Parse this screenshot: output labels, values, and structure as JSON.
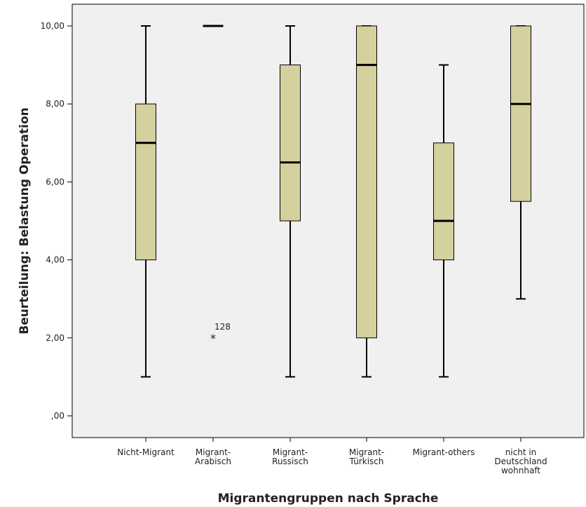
{
  "chart_data": {
    "type": "boxplot",
    "xlabel": "Migrantengruppen nach Sprache",
    "ylabel": "Beurteilung: Belastung Operation",
    "ylim": [
      0,
      10
    ],
    "yticks": [
      0,
      2,
      4,
      6,
      8,
      10
    ],
    "ytick_labels": [
      ",00",
      "2,00",
      "4,00",
      "6,00",
      "8,00",
      "10,00"
    ],
    "grid": false,
    "box_color": "#d5d19e",
    "plot_bg": "#f0f0f0",
    "categories": [
      {
        "label": [
          "Nicht-Migrant"
        ],
        "min": 1,
        "q1": 4,
        "median": 7,
        "q3": 8,
        "max": 10
      },
      {
        "label": [
          "Migrant-",
          "Arabisch"
        ],
        "min": 10,
        "q1": 10,
        "median": 10,
        "q3": 10,
        "max": 10
      },
      {
        "label": [
          "Migrant-",
          "Russisch"
        ],
        "min": 1,
        "q1": 5,
        "median": 6.5,
        "q3": 9,
        "max": 10
      },
      {
        "label": [
          "Migrant-",
          "Türkisch"
        ],
        "min": 1,
        "q1": 2,
        "median": 9,
        "q3": 10,
        "max": 10
      },
      {
        "label": [
          "Migrant-others"
        ],
        "min": 1,
        "q1": 4,
        "median": 5,
        "q3": 7,
        "max": 9
      },
      {
        "label": [
          "nicht in",
          "Deutschland",
          "wohnhaft"
        ],
        "min": 3,
        "q1": 5.5,
        "median": 8,
        "q3": 10,
        "max": 10
      }
    ],
    "outliers": [
      {
        "category_index": 1,
        "value": 2,
        "marker": "*",
        "label": "128"
      }
    ]
  }
}
